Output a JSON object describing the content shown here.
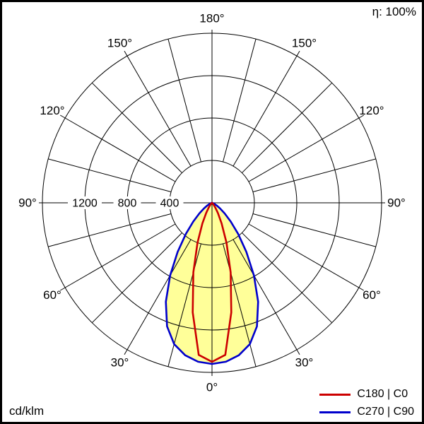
{
  "header": {
    "efficiency": "η: 100%"
  },
  "footer": {
    "unit": "cd/klm"
  },
  "legend": [
    {
      "label": "C180 | C0",
      "color": "#cc0000"
    },
    {
      "label": "C270 | C90",
      "color": "#0000cc"
    }
  ],
  "chart_data": {
    "type": "polar",
    "subtype": "photometric-intensity-distribution",
    "unit": "cd/klm",
    "efficiency_label": "η: 100%",
    "center": {
      "x": 300,
      "y": 287
    },
    "outer_radius_px": 240,
    "scale_max_value": 1600,
    "rings": [
      {
        "value": 400,
        "label": "400"
      },
      {
        "value": 800,
        "label": "800"
      },
      {
        "value": 1200,
        "label": "1200"
      },
      {
        "value": 1600,
        "label": ""
      }
    ],
    "spoke_step_deg": 15,
    "angle_label_step_deg": 30,
    "angle_labels": [
      "0°",
      "30°",
      "60°",
      "90°",
      "120°",
      "150°",
      "180°"
    ],
    "gamma_deg": [
      0,
      5,
      10,
      15,
      20,
      25,
      30,
      35,
      40,
      45,
      50,
      55,
      60,
      65,
      70,
      75,
      80,
      85,
      90
    ],
    "series": [
      {
        "name": "C180 | C0",
        "color": "#cc0000",
        "fill": null,
        "values": [
          1500,
          1440,
          1050,
          680,
          400,
          215,
          110,
          55,
          26,
          12,
          5,
          2,
          1,
          0,
          0,
          0,
          0,
          0,
          0
        ]
      },
      {
        "name": "C270 | C90",
        "color": "#0000cc",
        "fill": "#ffff99",
        "values": [
          1520,
          1505,
          1460,
          1380,
          1240,
          1030,
          790,
          565,
          385,
          250,
          155,
          92,
          52,
          28,
          14,
          6,
          2,
          1,
          0
        ]
      }
    ],
    "legend_position": "bottom-right",
    "grid": true
  }
}
